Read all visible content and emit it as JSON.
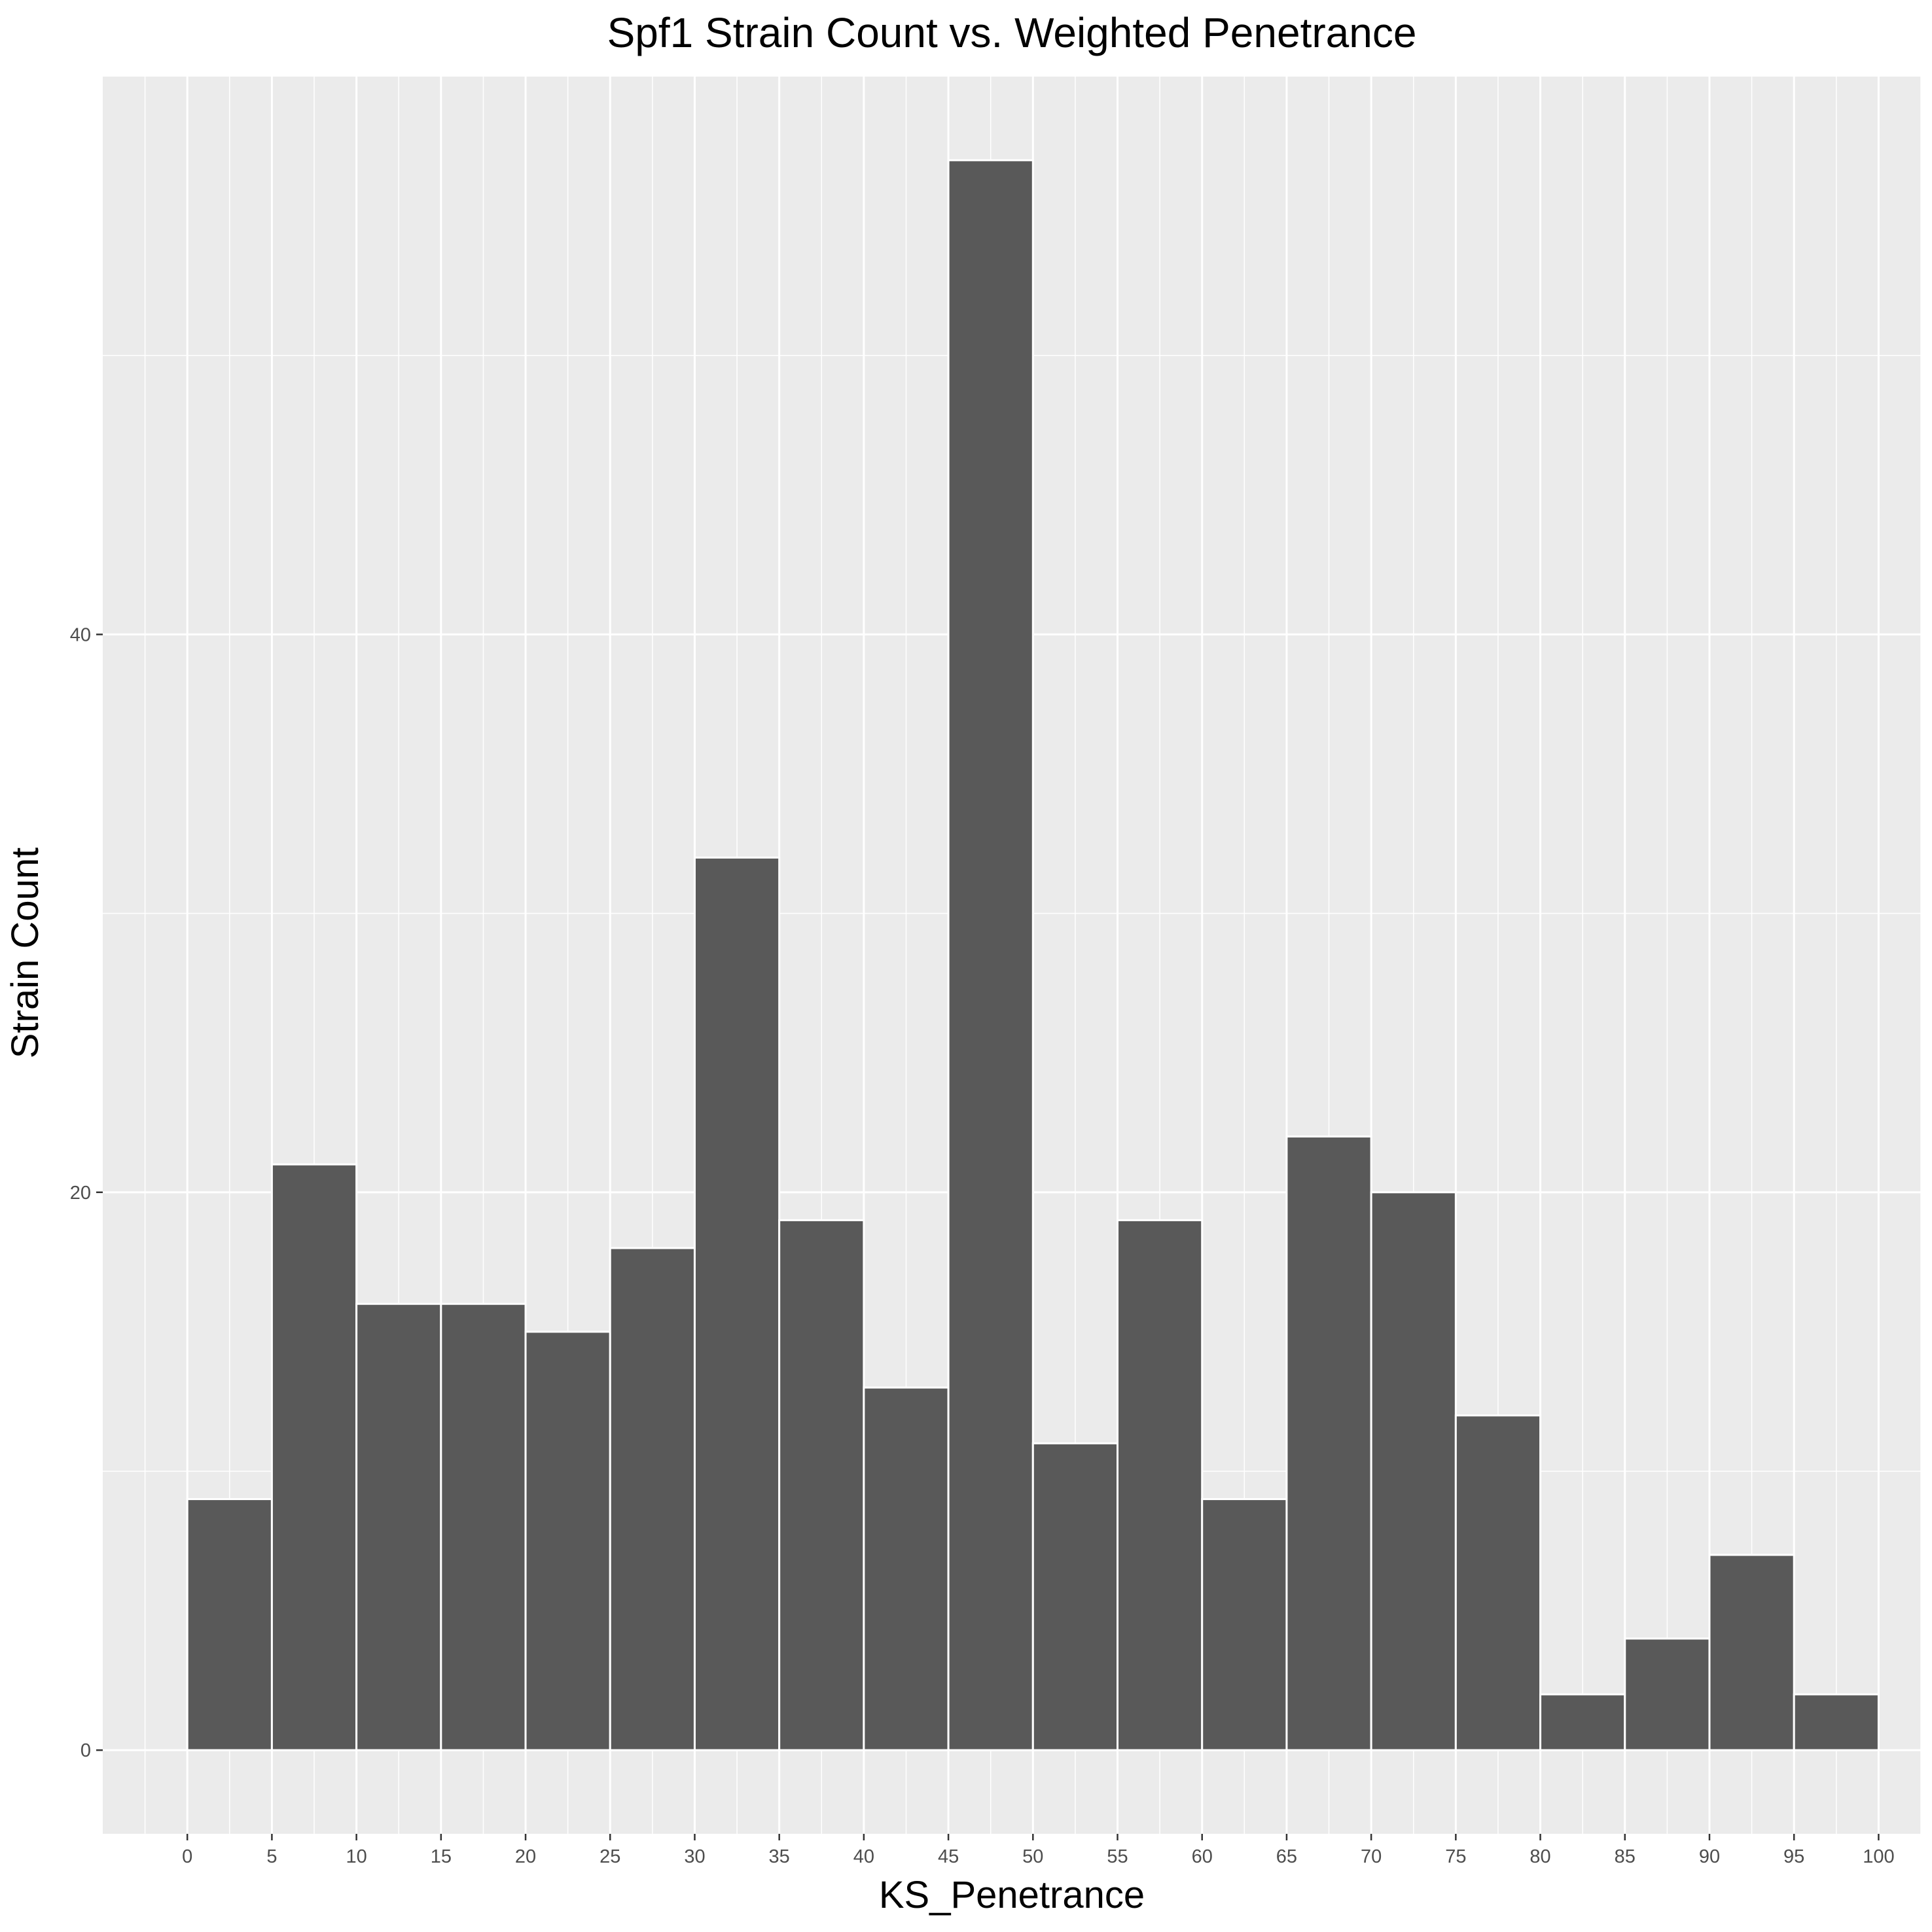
{
  "chart_data": {
    "type": "bar",
    "title": "Spf1 Strain Count vs. Weighted Penetrance",
    "xlabel": "KS_Penetrance",
    "ylabel": "Strain Count",
    "bin_width": 5,
    "bins": [
      {
        "start": 0,
        "end": 5,
        "value": 9
      },
      {
        "start": 5,
        "end": 10,
        "value": 21
      },
      {
        "start": 10,
        "end": 15,
        "value": 16
      },
      {
        "start": 15,
        "end": 20,
        "value": 16
      },
      {
        "start": 20,
        "end": 25,
        "value": 15
      },
      {
        "start": 25,
        "end": 30,
        "value": 18
      },
      {
        "start": 30,
        "end": 35,
        "value": 32
      },
      {
        "start": 35,
        "end": 40,
        "value": 19
      },
      {
        "start": 40,
        "end": 45,
        "value": 13
      },
      {
        "start": 45,
        "end": 50,
        "value": 57
      },
      {
        "start": 50,
        "end": 55,
        "value": 11
      },
      {
        "start": 55,
        "end": 60,
        "value": 19
      },
      {
        "start": 60,
        "end": 65,
        "value": 9
      },
      {
        "start": 65,
        "end": 70,
        "value": 22
      },
      {
        "start": 70,
        "end": 75,
        "value": 20
      },
      {
        "start": 75,
        "end": 80,
        "value": 12
      },
      {
        "start": 80,
        "end": 85,
        "value": 2
      },
      {
        "start": 85,
        "end": 90,
        "value": 4
      },
      {
        "start": 90,
        "end": 95,
        "value": 7
      },
      {
        "start": 95,
        "end": 100,
        "value": 2
      }
    ],
    "x_ticks": [
      "0",
      "5",
      "10",
      "15",
      "20",
      "25",
      "30",
      "35",
      "40",
      "45",
      "50",
      "55",
      "60",
      "65",
      "70",
      "75",
      "80",
      "85",
      "90",
      "95",
      "100"
    ],
    "y_ticks": [
      "0",
      "20",
      "40"
    ],
    "xlim": [
      -5,
      102.5
    ],
    "ylim": [
      -3,
      60
    ],
    "grid": true,
    "colors": {
      "panel": "#ebebeb",
      "grid": "#ffffff",
      "bar_fill": "#595959",
      "bar_outline": "#ffffff",
      "tick": "#333333"
    }
  }
}
